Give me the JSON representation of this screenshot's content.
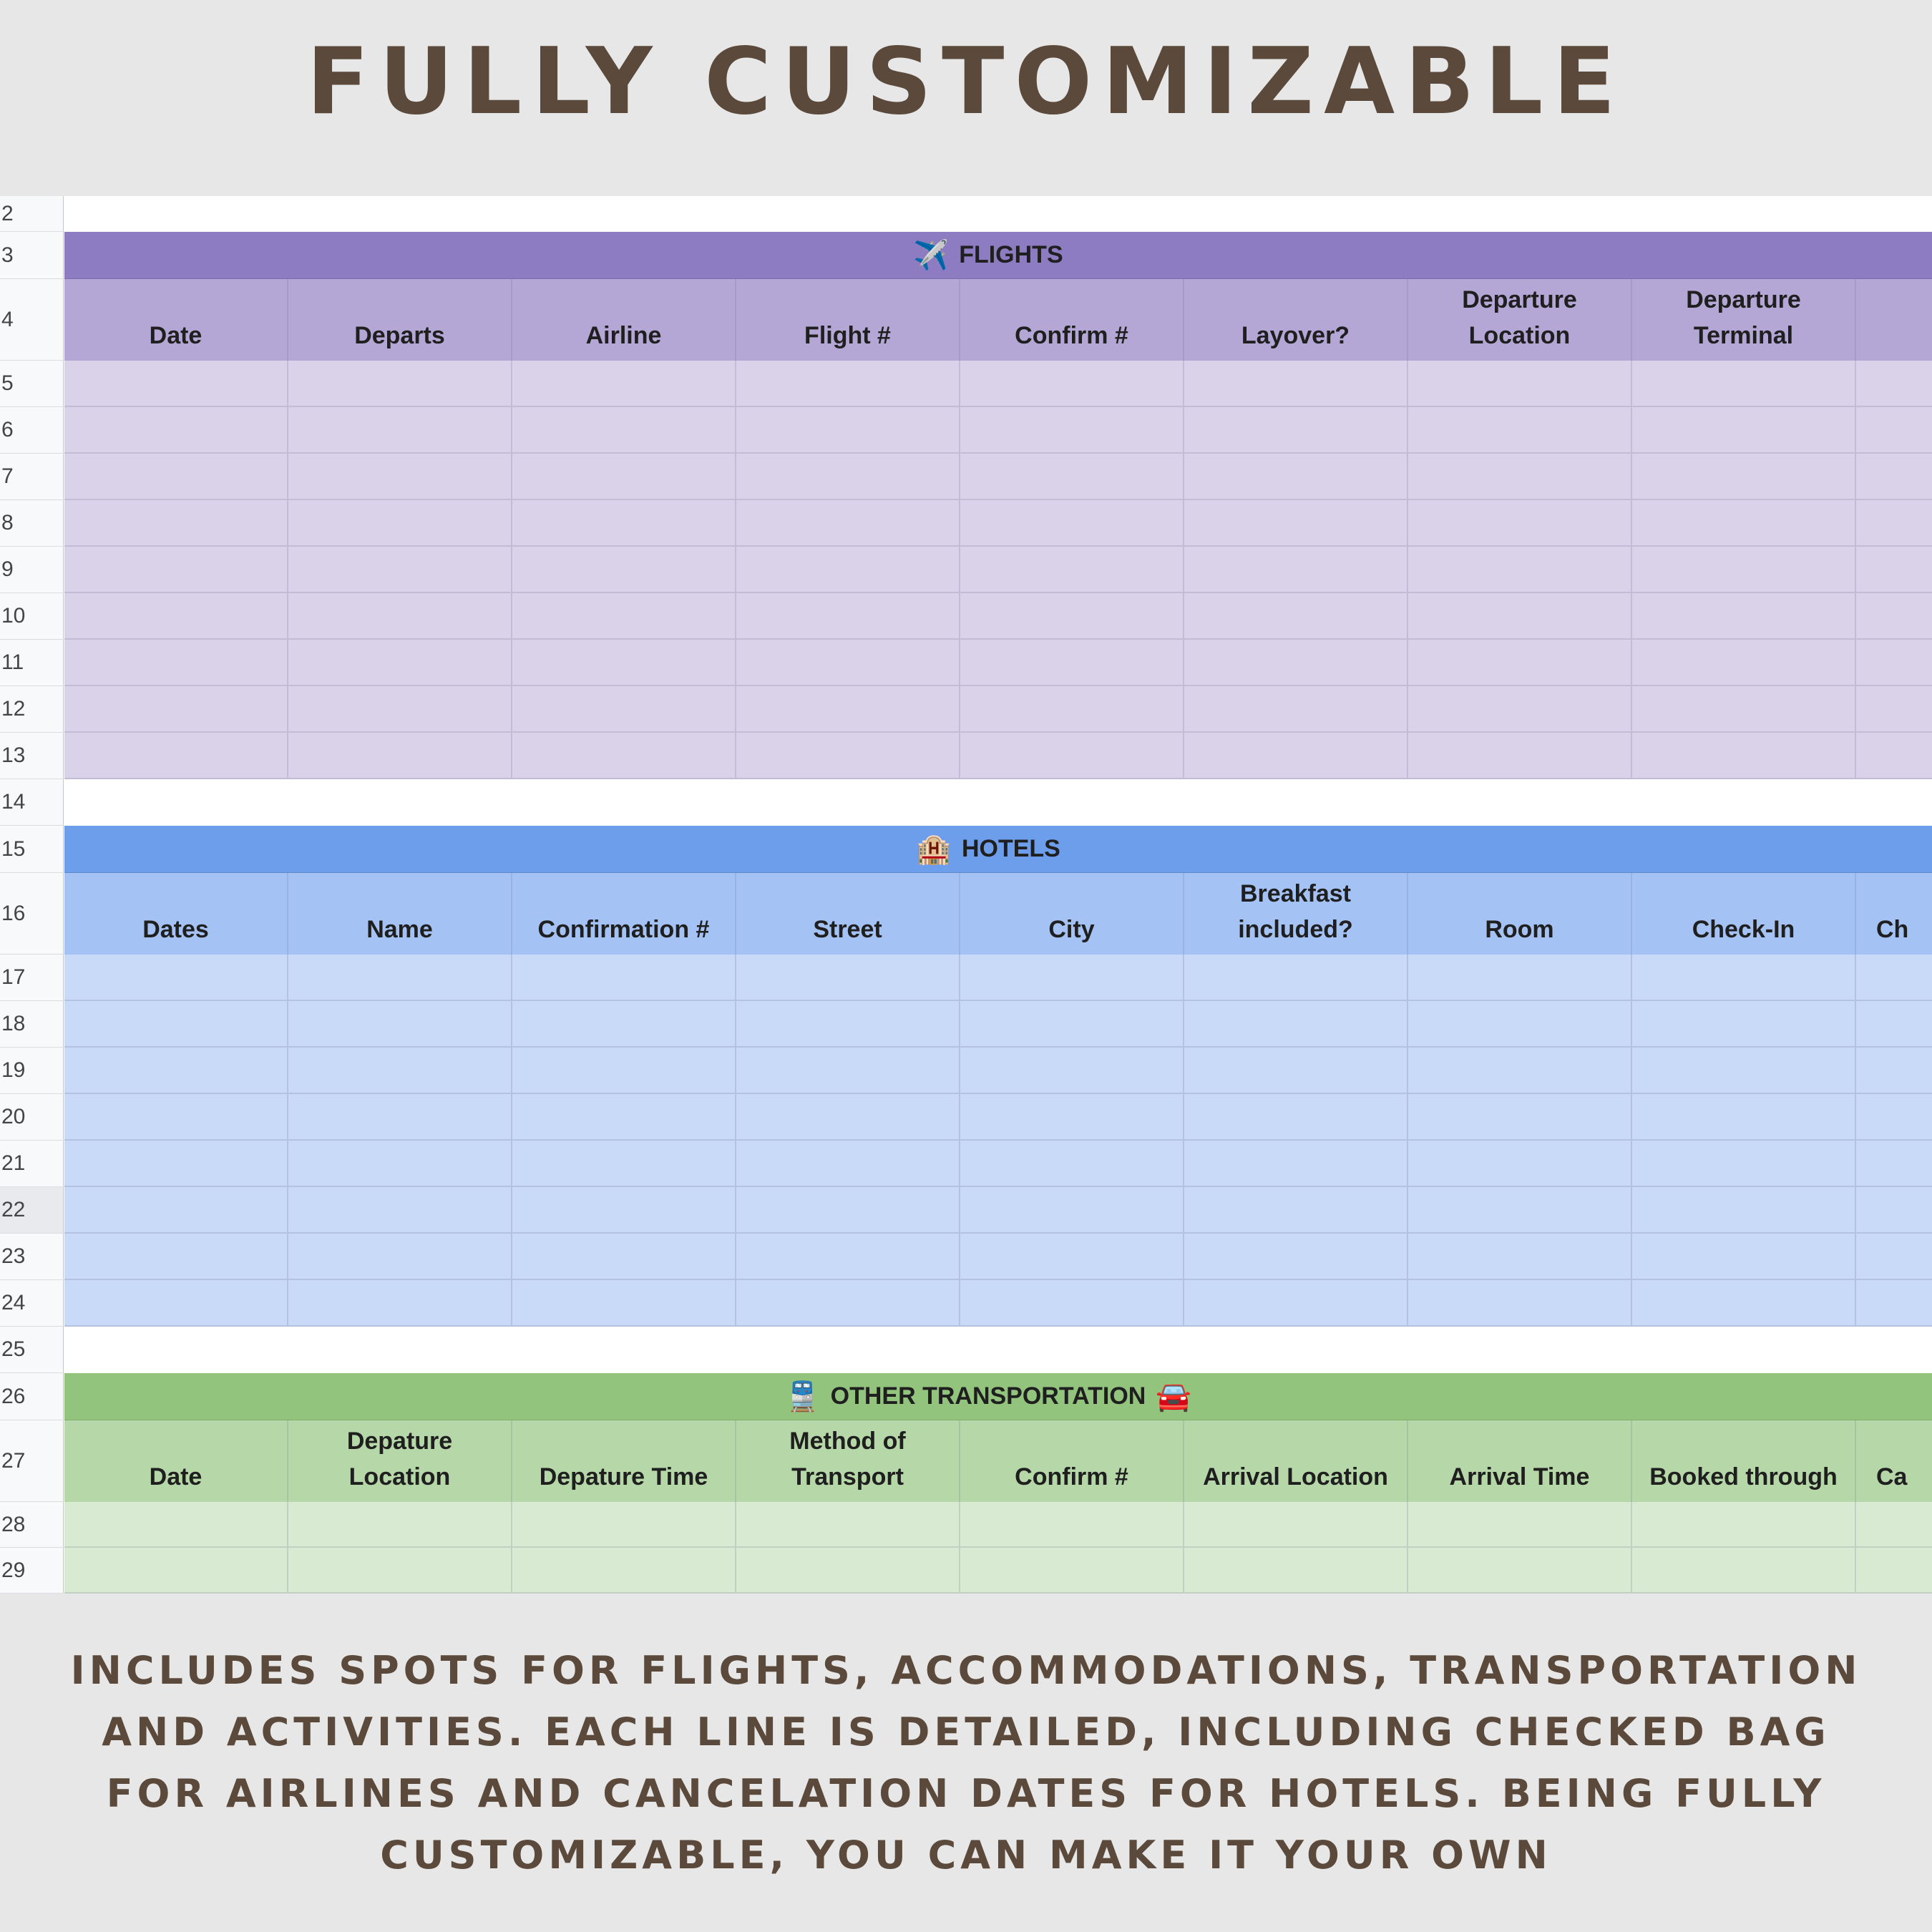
{
  "title": "FULLY CUSTOMIZABLE",
  "caption": "INCLUDES SPOTS FOR FLIGHTS, ACCOMMODATIONS, TRANSPORTATION AND ACTIVITIES. EACH LINE IS DETAILED, INCLUDING CHECKED BAG FOR AIRLINES AND CANCELATION DATES FOR HOTELS. BEING FULLY CUSTOMIZABLE, YOU CAN MAKE IT YOUR OWN",
  "row_numbers": [
    "2",
    "3",
    "4",
    "5",
    "6",
    "7",
    "8",
    "9",
    "10",
    "11",
    "12",
    "13",
    "14",
    "15",
    "16",
    "17",
    "18",
    "19",
    "20",
    "21",
    "22",
    "23",
    "24",
    "25",
    "26",
    "27",
    "28",
    "29"
  ],
  "colors": {
    "flights_band": "#8e7cc3",
    "flights_header": "#b4a7d6",
    "flights_body": "#d9d2e9",
    "hotels_band": "#6d9eeb",
    "hotels_header": "#a4c2f4",
    "hotels_body": "#c9daf8",
    "transport_band": "#93c47d",
    "transport_header": "#b6d7a8",
    "transport_body": "#d9ead3"
  },
  "flights": {
    "icon": "airplane-icon",
    "emoji": "✈️",
    "title": "FLIGHTS",
    "headers": [
      "Date",
      "Departs",
      "Airline",
      "Flight #",
      "Confirm #",
      "Layover?",
      "Departure\nLocation",
      "Departure\nTerminal"
    ]
  },
  "hotels": {
    "icon": "hotel-icon",
    "emoji": "🏨",
    "title": "HOTELS",
    "headers": [
      "Dates",
      "Name",
      "Confirmation #",
      "Street",
      "City",
      "Breakfast\nincluded?",
      "Room",
      "Check-In",
      "Ch"
    ]
  },
  "transport": {
    "icon_left": "train-icon",
    "emoji_left": "🚆",
    "title": "OTHER TRANSPORTATION",
    "icon_right": "car-icon",
    "emoji_right": "🚘",
    "headers": [
      "Date",
      "Depature\nLocation",
      "Depature Time",
      "Method of\nTransport",
      "Confirm #",
      "Arrival Location",
      "Arrival Time",
      "Booked through",
      "Ca"
    ]
  }
}
